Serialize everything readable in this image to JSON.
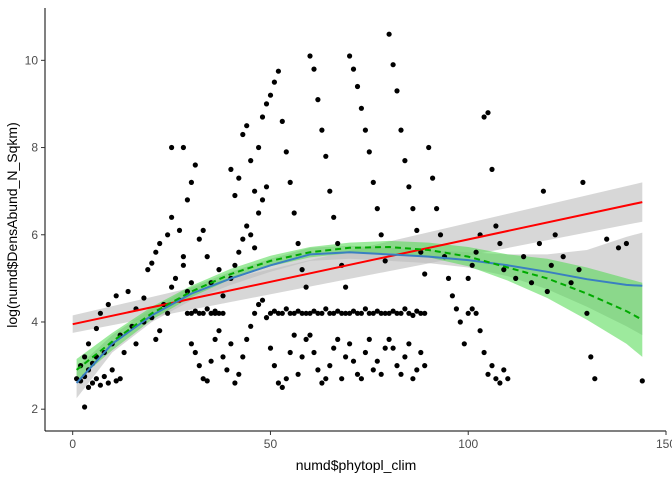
{
  "chart_data": {
    "type": "scatter",
    "title": "",
    "xlabel": "numd$phytopl_clim",
    "ylabel": "log(numd$DensAbund_N_Sqkm)",
    "xlim": [
      -7,
      150
    ],
    "ylim": [
      1.5,
      11.2
    ],
    "x_ticks": [
      0,
      50,
      100,
      150
    ],
    "x_tick_labels": [
      "0",
      "50",
      "100",
      "150"
    ],
    "y_ticks": [
      2,
      4,
      6,
      8,
      10
    ],
    "y_tick_labels": [
      "2",
      "4",
      "6",
      "8",
      "10"
    ],
    "grid": false,
    "legend": "none",
    "colors": {
      "points": "#000000",
      "linear_fit": "#ff0000",
      "loess_fit": "#3a7fc1",
      "quadratic_fit": "#00aa00",
      "ci_gray": "#bdbdbd",
      "ci_green": "#4dd94d",
      "axis": "#000000"
    },
    "linear_fit": {
      "x": [
        0,
        144
      ],
      "y": [
        3.95,
        6.75
      ],
      "ci_lower": [
        3.75,
        6.3
      ],
      "ci_upper": [
        4.15,
        7.2
      ]
    },
    "loess_fit": {
      "x": [
        1,
        10,
        20,
        30,
        40,
        50,
        60,
        70,
        80,
        90,
        100,
        110,
        120,
        130,
        140,
        144
      ],
      "y": [
        2.6,
        3.5,
        4.15,
        4.65,
        5.0,
        5.3,
        5.55,
        5.6,
        5.55,
        5.5,
        5.42,
        5.3,
        5.15,
        4.98,
        4.85,
        4.83
      ],
      "ci_lower": [
        2.25,
        3.3,
        4.0,
        4.5,
        4.85,
        5.15,
        5.4,
        5.45,
        5.4,
        5.35,
        5.25,
        5.05,
        4.75,
        4.35,
        3.9,
        3.7
      ],
      "ci_upper": [
        2.95,
        3.7,
        4.3,
        4.8,
        5.15,
        5.45,
        5.7,
        5.75,
        5.7,
        5.65,
        5.6,
        5.55,
        5.55,
        5.65,
        5.95,
        6.05
      ]
    },
    "quadratic_fit": {
      "x": [
        1,
        10,
        20,
        30,
        40,
        50,
        60,
        70,
        80,
        90,
        100,
        110,
        120,
        130,
        140,
        144
      ],
      "y": [
        2.9,
        3.55,
        4.2,
        4.7,
        5.1,
        5.4,
        5.6,
        5.7,
        5.72,
        5.65,
        5.5,
        5.25,
        5.0,
        4.65,
        4.25,
        4.05
      ],
      "ci_lower": [
        2.65,
        3.35,
        4.05,
        4.57,
        4.98,
        5.28,
        5.48,
        5.58,
        5.58,
        5.48,
        5.28,
        4.95,
        4.55,
        4.05,
        3.5,
        3.2
      ],
      "ci_upper": [
        3.15,
        3.75,
        4.35,
        4.83,
        5.22,
        5.52,
        5.72,
        5.82,
        5.86,
        5.82,
        5.72,
        5.55,
        5.45,
        5.25,
        5.0,
        4.9
      ]
    },
    "points": [
      [
        2,
        2.65
      ],
      [
        3,
        2.05
      ],
      [
        4,
        2.5
      ],
      [
        5,
        2.6
      ],
      [
        6,
        2.7
      ],
      [
        7,
        2.55
      ],
      [
        8,
        2.75
      ],
      [
        9,
        2.6
      ],
      [
        10,
        2.9
      ],
      [
        11,
        2.65
      ],
      [
        12,
        2.7
      ],
      [
        3,
        2.75
      ],
      [
        4,
        2.9
      ],
      [
        5,
        3.05
      ],
      [
        6,
        3.2
      ],
      [
        8,
        3.3
      ],
      [
        10,
        3.5
      ],
      [
        12,
        3.7
      ],
      [
        13,
        3.3
      ],
      [
        15,
        3.9
      ],
      [
        16,
        3.5
      ],
      [
        18,
        4.0
      ],
      [
        1,
        2.7
      ],
      [
        2,
        3.0
      ],
      [
        3,
        3.2
      ],
      [
        4,
        3.5
      ],
      [
        6,
        3.85
      ],
      [
        7,
        4.2
      ],
      [
        9,
        4.4
      ],
      [
        11,
        4.6
      ],
      [
        14,
        4.7
      ],
      [
        16,
        4.3
      ],
      [
        18,
        4.55
      ],
      [
        20,
        4.1
      ],
      [
        21,
        3.6
      ],
      [
        22,
        3.8
      ],
      [
        23,
        4.4
      ],
      [
        24,
        4.2
      ],
      [
        25,
        4.8
      ],
      [
        26,
        5.0
      ],
      [
        27,
        4.5
      ],
      [
        28,
        5.3
      ],
      [
        29,
        4.7
      ],
      [
        30,
        4.9
      ],
      [
        19,
        5.2
      ],
      [
        20,
        5.35
      ],
      [
        21,
        5.6
      ],
      [
        22,
        5.8
      ],
      [
        24,
        6.0
      ],
      [
        25,
        6.4
      ],
      [
        27,
        6.1
      ],
      [
        28,
        5.5
      ],
      [
        29,
        6.8
      ],
      [
        30,
        7.2
      ],
      [
        25,
        8.0
      ],
      [
        28,
        8.0
      ],
      [
        31,
        7.6
      ],
      [
        32,
        5.9
      ],
      [
        33,
        6.1
      ],
      [
        34,
        5.5
      ],
      [
        35,
        4.9
      ],
      [
        36,
        4.2
      ],
      [
        37,
        5.2
      ],
      [
        38,
        4.6
      ],
      [
        29,
        4.2
      ],
      [
        30,
        4.2
      ],
      [
        31,
        4.25
      ],
      [
        32,
        4.2
      ],
      [
        33,
        4.2
      ],
      [
        34,
        4.3
      ],
      [
        35,
        4.2
      ],
      [
        36,
        4.25
      ],
      [
        37,
        4.2
      ],
      [
        38,
        4.2
      ],
      [
        30,
        3.5
      ],
      [
        31,
        3.3
      ],
      [
        32,
        3.0
      ],
      [
        33,
        2.7
      ],
      [
        34,
        2.65
      ],
      [
        35,
        3.1
      ],
      [
        36,
        3.6
      ],
      [
        37,
        3.8
      ],
      [
        38,
        3.2
      ],
      [
        39,
        2.9
      ],
      [
        40,
        3.5
      ],
      [
        41,
        2.6
      ],
      [
        42,
        2.8
      ],
      [
        43,
        3.2
      ],
      [
        44,
        3.6
      ],
      [
        45,
        3.9
      ],
      [
        46,
        4.2
      ],
      [
        47,
        4.4
      ],
      [
        48,
        4.5
      ],
      [
        49,
        4.1
      ],
      [
        40,
        5.0
      ],
      [
        41,
        5.3
      ],
      [
        42,
        5.6
      ],
      [
        43,
        5.9
      ],
      [
        44,
        6.2
      ],
      [
        45,
        6.0
      ],
      [
        46,
        5.7
      ],
      [
        47,
        6.5
      ],
      [
        48,
        6.8
      ],
      [
        49,
        7.1
      ],
      [
        40,
        7.5
      ],
      [
        41,
        6.9
      ],
      [
        42,
        7.3
      ],
      [
        43,
        8.3
      ],
      [
        44,
        8.5
      ],
      [
        45,
        7.7
      ],
      [
        46,
        7.0
      ],
      [
        47,
        8.0
      ],
      [
        48,
        8.7
      ],
      [
        49,
        9.0
      ],
      [
        50,
        9.2
      ],
      [
        51,
        9.5
      ],
      [
        52,
        9.75
      ],
      [
        53,
        8.6
      ],
      [
        54,
        7.9
      ],
      [
        55,
        7.2
      ],
      [
        56,
        6.5
      ],
      [
        57,
        5.8
      ],
      [
        58,
        5.2
      ],
      [
        59,
        4.8
      ],
      [
        50,
        4.2
      ],
      [
        51,
        4.25
      ],
      [
        52,
        4.2
      ],
      [
        53,
        4.2
      ],
      [
        54,
        4.3
      ],
      [
        55,
        4.2
      ],
      [
        56,
        4.2
      ],
      [
        57,
        4.25
      ],
      [
        58,
        4.2
      ],
      [
        59,
        4.2
      ],
      [
        50,
        3.4
      ],
      [
        51,
        3.0
      ],
      [
        52,
        2.6
      ],
      [
        53,
        2.5
      ],
      [
        54,
        2.7
      ],
      [
        55,
        3.3
      ],
      [
        56,
        3.7
      ],
      [
        57,
        2.8
      ],
      [
        58,
        3.2
      ],
      [
        59,
        3.6
      ],
      [
        60,
        10.1
      ],
      [
        61,
        9.8
      ],
      [
        62,
        9.1
      ],
      [
        63,
        8.4
      ],
      [
        64,
        7.8
      ],
      [
        65,
        7.0
      ],
      [
        66,
        6.4
      ],
      [
        67,
        5.8
      ],
      [
        68,
        5.3
      ],
      [
        69,
        4.8
      ],
      [
        60,
        4.2
      ],
      [
        61,
        4.25
      ],
      [
        62,
        4.2
      ],
      [
        63,
        4.2
      ],
      [
        64,
        4.3
      ],
      [
        65,
        4.2
      ],
      [
        66,
        4.2
      ],
      [
        67,
        4.25
      ],
      [
        68,
        4.2
      ],
      [
        69,
        4.2
      ],
      [
        60,
        3.7
      ],
      [
        61,
        3.3
      ],
      [
        62,
        2.9
      ],
      [
        63,
        2.6
      ],
      [
        64,
        2.7
      ],
      [
        65,
        3.0
      ],
      [
        66,
        3.4
      ],
      [
        67,
        3.6
      ],
      [
        68,
        2.7
      ],
      [
        69,
        3.2
      ],
      [
        70,
        10.1
      ],
      [
        71,
        9.8
      ],
      [
        72,
        9.4
      ],
      [
        73,
        8.9
      ],
      [
        74,
        8.4
      ],
      [
        75,
        7.9
      ],
      [
        76,
        7.2
      ],
      [
        77,
        6.6
      ],
      [
        78,
        6.0
      ],
      [
        79,
        5.4
      ],
      [
        70,
        4.2
      ],
      [
        71,
        4.25
      ],
      [
        72,
        4.2
      ],
      [
        73,
        4.2
      ],
      [
        74,
        4.3
      ],
      [
        75,
        4.2
      ],
      [
        76,
        4.2
      ],
      [
        77,
        4.25
      ],
      [
        78,
        4.2
      ],
      [
        79,
        4.2
      ],
      [
        70,
        3.5
      ],
      [
        71,
        3.1
      ],
      [
        72,
        2.8
      ],
      [
        73,
        2.7
      ],
      [
        74,
        3.3
      ],
      [
        75,
        3.6
      ],
      [
        76,
        2.9
      ],
      [
        77,
        3.1
      ],
      [
        78,
        2.8
      ],
      [
        79,
        3.4
      ],
      [
        80,
        10.6
      ],
      [
        81,
        9.9
      ],
      [
        82,
        9.3
      ],
      [
        83,
        8.4
      ],
      [
        84,
        7.7
      ],
      [
        85,
        7.1
      ],
      [
        86,
        6.6
      ],
      [
        87,
        6.1
      ],
      [
        88,
        5.6
      ],
      [
        89,
        5.1
      ],
      [
        80,
        4.2
      ],
      [
        81,
        4.25
      ],
      [
        82,
        4.2
      ],
      [
        83,
        4.2
      ],
      [
        84,
        4.3
      ],
      [
        85,
        4.2
      ],
      [
        86,
        4.15
      ],
      [
        87,
        4.25
      ],
      [
        88,
        4.2
      ],
      [
        89,
        4.2
      ],
      [
        80,
        3.6
      ],
      [
        81,
        3.4
      ],
      [
        82,
        3.0
      ],
      [
        83,
        2.8
      ],
      [
        84,
        3.2
      ],
      [
        85,
        3.5
      ],
      [
        86,
        2.7
      ],
      [
        87,
        2.9
      ],
      [
        88,
        3.3
      ],
      [
        89,
        3.0
      ],
      [
        90,
        8.0
      ],
      [
        91,
        7.3
      ],
      [
        92,
        6.6
      ],
      [
        93,
        6.0
      ],
      [
        94,
        5.5
      ],
      [
        95,
        5.0
      ],
      [
        96,
        4.6
      ],
      [
        97,
        4.3
      ],
      [
        98,
        4.0
      ],
      [
        99,
        3.5
      ],
      [
        100,
        5.0
      ],
      [
        101,
        5.3
      ],
      [
        102,
        5.6
      ],
      [
        103,
        6.0
      ],
      [
        104,
        8.7
      ],
      [
        105,
        8.8
      ],
      [
        106,
        7.5
      ],
      [
        107,
        6.2
      ],
      [
        108,
        5.8
      ],
      [
        109,
        5.2
      ],
      [
        100,
        4.2
      ],
      [
        101,
        4.3
      ],
      [
        102,
        4.2
      ],
      [
        103,
        3.8
      ],
      [
        104,
        3.3
      ],
      [
        105,
        2.8
      ],
      [
        106,
        3.0
      ],
      [
        107,
        2.7
      ],
      [
        108,
        2.6
      ],
      [
        109,
        2.9
      ],
      [
        110,
        2.7
      ],
      [
        112,
        5.0
      ],
      [
        114,
        5.5
      ],
      [
        116,
        4.9
      ],
      [
        118,
        5.8
      ],
      [
        119,
        7.0
      ],
      [
        120,
        4.7
      ],
      [
        121,
        5.3
      ],
      [
        122,
        6.0
      ],
      [
        124,
        5.5
      ],
      [
        126,
        4.9
      ],
      [
        128,
        5.2
      ],
      [
        129,
        7.2
      ],
      [
        130,
        4.2
      ],
      [
        131,
        3.2
      ],
      [
        132,
        2.7
      ],
      [
        135,
        5.9
      ],
      [
        138,
        5.7
      ],
      [
        140,
        5.8
      ],
      [
        144,
        2.65
      ]
    ]
  }
}
